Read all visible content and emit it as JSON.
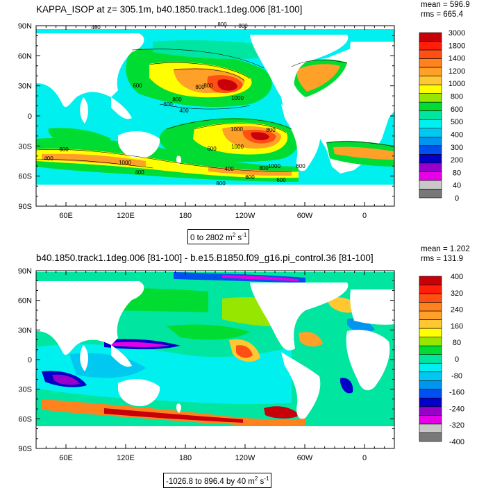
{
  "top": {
    "title": "KAPPA_ISOP at z= 305.1m, b40.1850.track1.1deg.006 [81-100]",
    "mean": "mean = 596.9",
    "rms": "rms = 665.4",
    "range_text": "0 to 2802",
    "units_base": "m",
    "units_exp1": "2",
    "units_s": "s",
    "units_exp2": "-1",
    "colorbar": {
      "labels": [
        "3000",
        "1800",
        "1400",
        "1200",
        "1000",
        "800",
        "600",
        "500",
        "400",
        "300",
        "200",
        "80",
        "40",
        "0"
      ],
      "colors": [
        "#c8000a",
        "#ff1e0a",
        "#ff5014",
        "#ff821e",
        "#ffa028",
        "#ffc832",
        "#ffff00",
        "#96e600",
        "#00dc32",
        "#00e6a0",
        "#00f0f0",
        "#00c8f0",
        "#0096f0",
        "#0050f0",
        "#0000c8",
        "#9600c8",
        "#e600e6",
        "#c8c8c8",
        "#787878"
      ]
    },
    "contour_labels": [
      "400",
      "800",
      "800",
      "600",
      "800",
      "1000",
      "800",
      "400",
      "600",
      "800",
      "1000",
      "800",
      "600",
      "1000",
      "800",
      "600",
      "1000",
      "600",
      "400",
      "600",
      "400",
      "1000",
      "400",
      "800",
      "600"
    ]
  },
  "bottom": {
    "title": "b40.1850.track1.1deg.006 [81-100] - b.e15.B1850.f09_g16.pi_control.36 [81-100]",
    "mean": "mean = 1.202",
    "rms": "rms = 131.9",
    "range_text": "-1026.8 to 896.4 by 40",
    "units_base": "m",
    "units_exp1": "2",
    "units_s": "s",
    "units_exp2": "-1",
    "colorbar": {
      "labels": [
        "400",
        "320",
        "240",
        "160",
        "80",
        "0",
        "-80",
        "-160",
        "-240",
        "-320",
        "-400"
      ],
      "colors": [
        "#c8000a",
        "#ff1e0a",
        "#ff5014",
        "#ff821e",
        "#ffa028",
        "#ffc832",
        "#ffff00",
        "#96e600",
        "#00dc32",
        "#00e6a0",
        "#00f0f0",
        "#00c8f0",
        "#0096f0",
        "#0050f0",
        "#0000c8",
        "#9600c8",
        "#e600e6",
        "#c8c8c8",
        "#787878"
      ]
    }
  },
  "axes": {
    "lat_labels": [
      "90N",
      "60N",
      "30N",
      "0",
      "30S",
      "60S",
      "90S"
    ],
    "lon_labels": [
      "60E",
      "120E",
      "180",
      "120W",
      "60W",
      "0"
    ]
  },
  "colors": {
    "ocean_base_top": "#00f0f0",
    "ocean_base_bottom": "#00e6a0",
    "land": "#ffffff"
  }
}
